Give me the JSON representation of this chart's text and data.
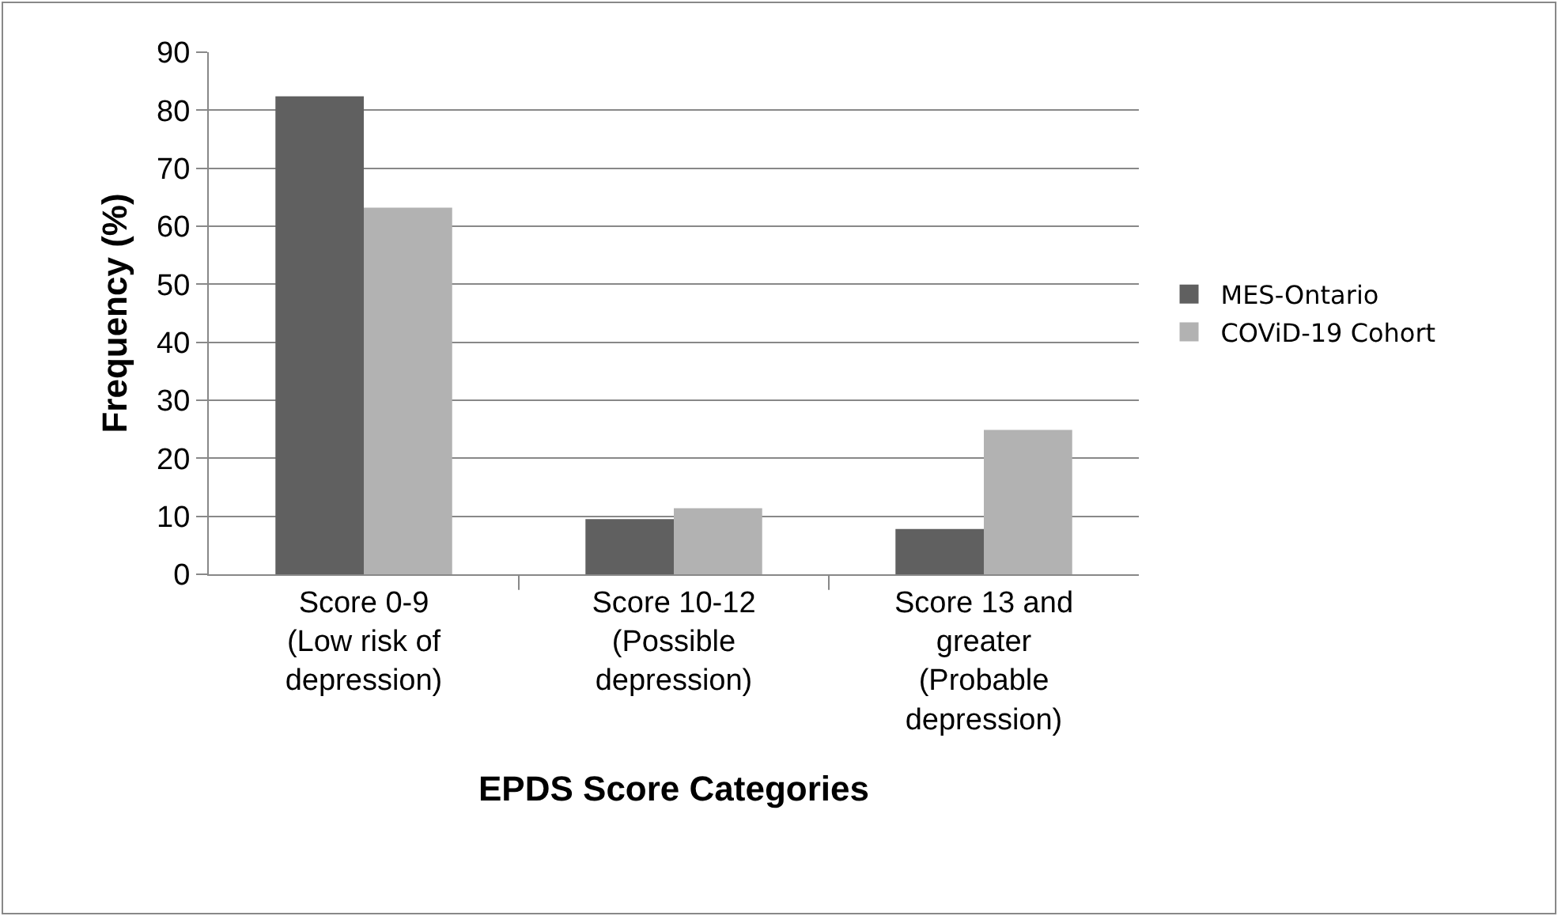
{
  "chart_data": {
    "type": "bar",
    "xlabel": "EPDS Score Categories",
    "ylabel": "Frequency (%)",
    "categories": [
      "Score 0-9 (Low risk of depression)",
      "Score 10-12 (Possible depression)",
      "Score 13 and greater (Probable depression)"
    ],
    "series": [
      {
        "name": "MES-Ontario",
        "color": "#606060",
        "values": [
          82.4,
          9.5,
          7.8
        ]
      },
      {
        "name": "COViD-19 Cohort",
        "color": "#b2b2b2",
        "values": [
          63.2,
          11.4,
          24.9
        ]
      }
    ],
    "ylim": [
      0,
      90
    ],
    "yticks": [
      0,
      10,
      20,
      30,
      40,
      50,
      60,
      70,
      80,
      90
    ],
    "grid": "y",
    "legend": "right"
  }
}
